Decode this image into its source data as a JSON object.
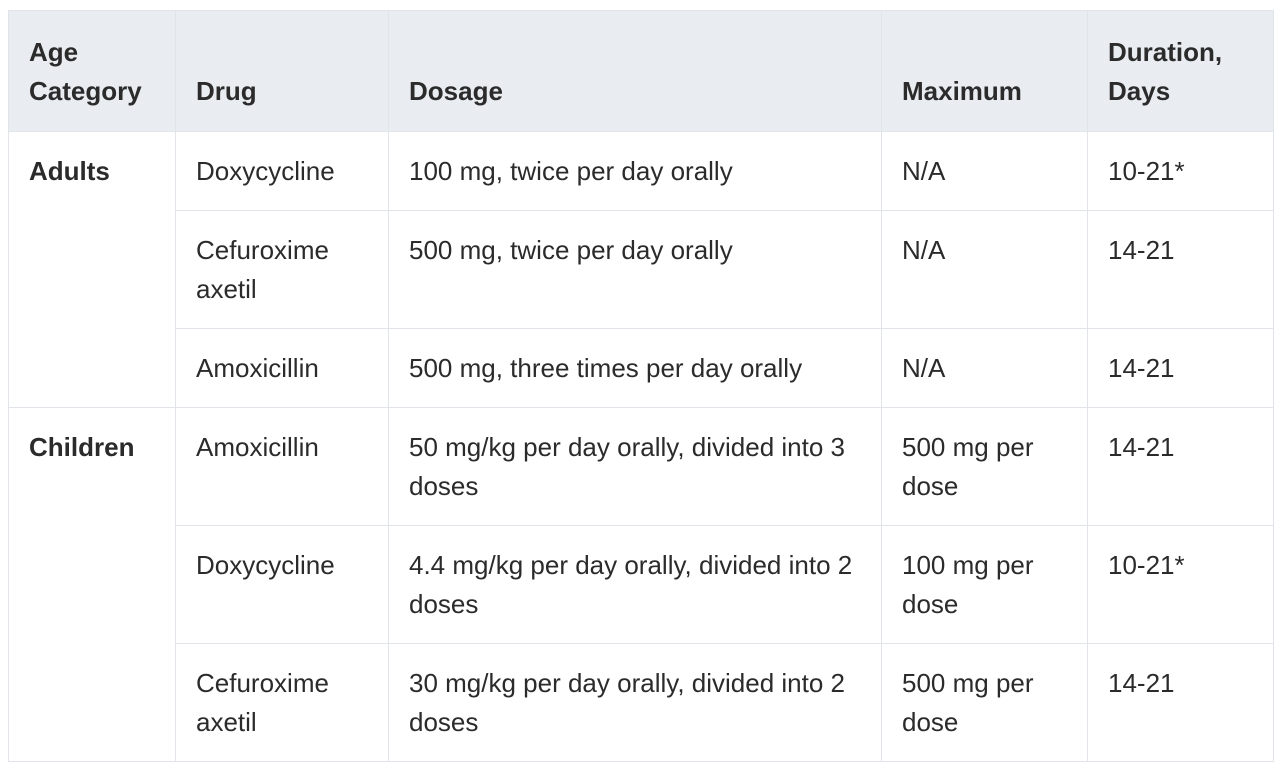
{
  "table": {
    "headers": [
      "Age Category",
      "Drug",
      "Dosage",
      "Maximum",
      "Duration, Days"
    ],
    "groups": [
      {
        "category": "Adults",
        "rows": [
          [
            "Doxycycline",
            "100 mg, twice per day orally",
            "N/A",
            "10-21*"
          ],
          [
            "Cefuroxime axetil",
            "500 mg, twice per day orally",
            "N/A",
            "14-21"
          ],
          [
            "Amoxicillin",
            "500 mg, three times per day orally",
            "N/A",
            "14-21"
          ]
        ]
      },
      {
        "category": "Children",
        "rows": [
          [
            "Amoxicillin",
            "50 mg/kg per day orally, divided into 3 doses",
            "500 mg per dose",
            "14-21"
          ],
          [
            "Doxycycline",
            "4.4 mg/kg per day orally, divided into 2 doses",
            "100 mg per dose",
            "10-21*"
          ],
          [
            "Cefuroxime axetil",
            "30 mg/kg per day orally, divided into 2 doses",
            "500 mg per dose",
            "14-21"
          ]
        ]
      }
    ]
  }
}
